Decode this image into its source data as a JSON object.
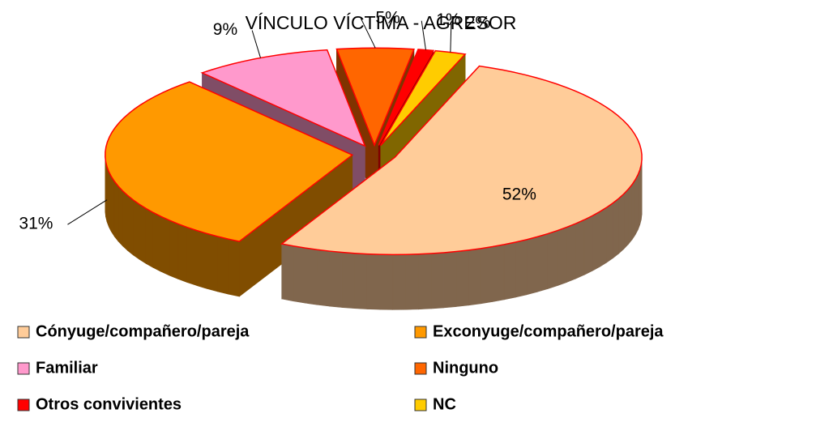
{
  "chart_data": {
    "type": "pie",
    "title": "VÍNCULO VÍCTIMA - AGRESOR",
    "categories": [
      "Cónyuge/compañero/pareja",
      "Exconyuge/compañero/pareja",
      "Familiar",
      "Ninguno",
      "Otros convivientes",
      "NC"
    ],
    "values": [
      52,
      31,
      9,
      5,
      1,
      2
    ],
    "value_labels": [
      "52%",
      "31%",
      "9%",
      "5%",
      "1%",
      "2%"
    ],
    "colors": [
      "#ffcc99",
      "#ff9900",
      "#ff99cc",
      "#ff6600",
      "#ff0000",
      "#ffcc00"
    ],
    "legend": "bottom"
  }
}
